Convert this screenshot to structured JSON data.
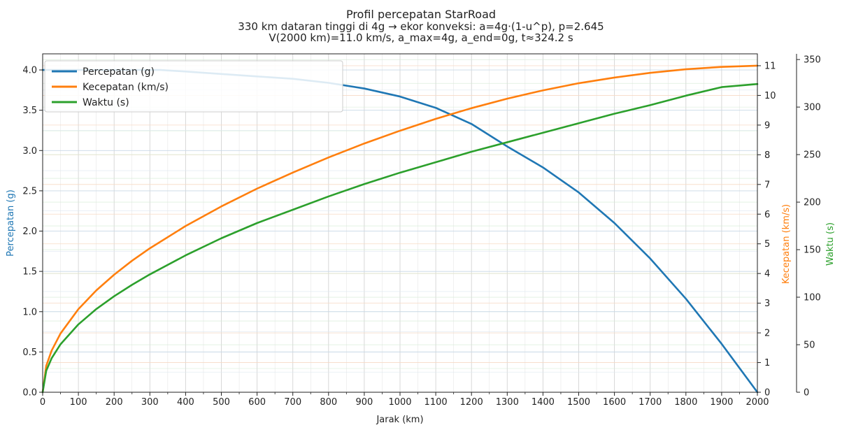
{
  "chart_data": {
    "type": "line",
    "title": "Profil percepatan StarRoad",
    "subtitle_lines": [
      "330 km dataran tinggi di 4g → ekor konveksi: a=4g·(1-u^p), p=2.645",
      "V(2000 km)=11.0 km/s, a_max=4g, a_end=0g, t≈324.2 s"
    ],
    "xlabel": "Jarak (km)",
    "ylabel_left": "Percepatan (g)",
    "ylabel_right1": "Kecepatan (km/s)",
    "ylabel_right2": "Waktu (s)",
    "xlim": [
      0,
      2000
    ],
    "ylim_left": [
      0,
      4.2
    ],
    "ylim_right1": [
      0,
      11.4
    ],
    "ylim_right2": [
      0,
      356
    ],
    "x_ticks": [
      "0",
      "100",
      "200",
      "300",
      "400",
      "500",
      "600",
      "700",
      "800",
      "900",
      "1000",
      "1100",
      "1200",
      "1300",
      "1400",
      "1500",
      "1600",
      "1700",
      "1800",
      "1900",
      "2000"
    ],
    "y_left_ticks": [
      "0.0",
      "0.5",
      "1.0",
      "1.5",
      "2.0",
      "2.5",
      "3.0",
      "3.5",
      "4.0"
    ],
    "y_right1_ticks": [
      "0",
      "1",
      "2",
      "3",
      "4",
      "5",
      "6",
      "7",
      "8",
      "9",
      "10",
      "11"
    ],
    "y_right2_ticks": [
      "0",
      "50",
      "100",
      "150",
      "200",
      "250",
      "300",
      "350"
    ],
    "grid": true,
    "legend_position": "top-left",
    "colors": {
      "accel": "#1f77b4",
      "velocity": "#ff7f0e",
      "time": "#2ca02c"
    },
    "series": [
      {
        "name": "Percepatan (g)",
        "axis": "left",
        "x": [
          0,
          330,
          400,
          500,
          600,
          700,
          800,
          900,
          1000,
          1100,
          1200,
          1300,
          1400,
          1500,
          1600,
          1700,
          1800,
          1900,
          2000
        ],
        "y": [
          4.0,
          4.0,
          3.98,
          3.95,
          3.92,
          3.89,
          3.84,
          3.77,
          3.67,
          3.53,
          3.33,
          3.05,
          2.79,
          2.48,
          2.1,
          1.66,
          1.16,
          0.6,
          0.0
        ]
      },
      {
        "name": "Kecepatan (km/s)",
        "axis": "right1",
        "x": [
          0,
          10,
          25,
          50,
          100,
          150,
          200,
          250,
          300,
          400,
          500,
          600,
          700,
          800,
          900,
          1000,
          1100,
          1200,
          1300,
          1400,
          1500,
          1600,
          1700,
          1800,
          1900,
          2000
        ],
        "y": [
          0,
          0.89,
          1.4,
          1.98,
          2.8,
          3.43,
          3.96,
          4.43,
          4.85,
          5.6,
          6.26,
          6.86,
          7.4,
          7.91,
          8.38,
          8.81,
          9.21,
          9.57,
          9.89,
          10.17,
          10.41,
          10.6,
          10.76,
          10.88,
          10.96,
          11.0
        ]
      },
      {
        "name": "Waktu (s)",
        "axis": "right2",
        "x": [
          0,
          10,
          25,
          50,
          100,
          150,
          200,
          250,
          300,
          400,
          500,
          600,
          700,
          800,
          900,
          1000,
          1100,
          1200,
          1300,
          1400,
          1500,
          1600,
          1700,
          1800,
          1900,
          2000
        ],
        "y": [
          0,
          22.6,
          35.7,
          50.5,
          71.4,
          87.5,
          101,
          113,
          124,
          144,
          162,
          178,
          192,
          206,
          219,
          231,
          242,
          253,
          263,
          273,
          283,
          293,
          302,
          312,
          321,
          324.2
        ]
      }
    ]
  }
}
